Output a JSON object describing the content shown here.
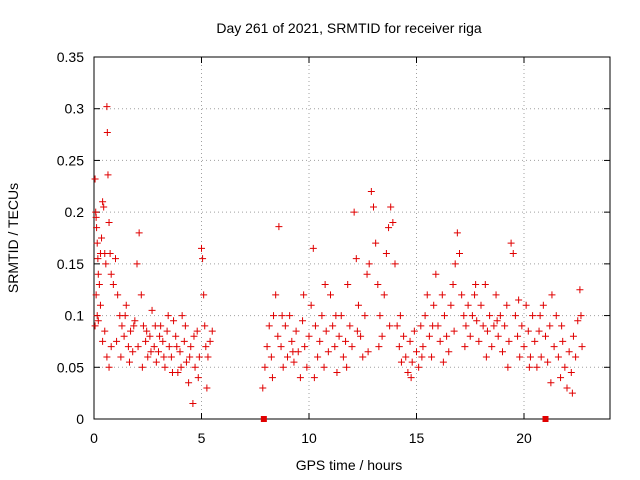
{
  "chart_data": {
    "type": "scatter",
    "title": "Day 261 of 2021, SRMTID for receiver riga",
    "xlabel": "GPS time / hours",
    "ylabel": "SRMTID / TECUs",
    "xlim": [
      0,
      24
    ],
    "ylim": [
      0,
      0.35
    ],
    "xticks": [
      0,
      5,
      10,
      15,
      20
    ],
    "xtick_labels": [
      "0",
      "5",
      "10",
      "15",
      "20"
    ],
    "yticks": [
      0,
      0.05,
      0.1,
      0.15,
      0.2,
      0.25,
      0.3,
      0.35
    ],
    "ytick_labels": [
      "0",
      "0.05",
      "0.1",
      "0.15",
      "0.2",
      "0.25",
      "0.3",
      "0.35"
    ],
    "grid": true,
    "marker": "+",
    "color": "#e00000",
    "segments": [
      {
        "x_start": 0.0,
        "x_end": 5.5,
        "note": "first data block"
      },
      {
        "x_start": 7.8,
        "x_end": 22.7,
        "note": "second data block"
      }
    ],
    "special_markers": [
      {
        "x": 7.9,
        "y": 0.0,
        "shape": "square"
      },
      {
        "x": 21.0,
        "y": 0.0,
        "shape": "square"
      }
    ],
    "series": [
      {
        "name": "SRMTID",
        "points": [
          [
            0.05,
            0.232
          ],
          [
            0.08,
            0.2
          ],
          [
            0.1,
            0.195
          ],
          [
            0.12,
            0.185
          ],
          [
            0.15,
            0.17
          ],
          [
            0.18,
            0.155
          ],
          [
            0.2,
            0.14
          ],
          [
            0.25,
            0.13
          ],
          [
            0.3,
            0.16
          ],
          [
            0.35,
            0.175
          ],
          [
            0.4,
            0.21
          ],
          [
            0.45,
            0.205
          ],
          [
            0.5,
            0.16
          ],
          [
            0.55,
            0.15
          ],
          [
            0.6,
            0.302
          ],
          [
            0.62,
            0.277
          ],
          [
            0.65,
            0.236
          ],
          [
            0.7,
            0.19
          ],
          [
            0.75,
            0.16
          ],
          [
            0.8,
            0.14
          ],
          [
            0.05,
            0.09
          ],
          [
            0.1,
            0.12
          ],
          [
            0.15,
            0.1
          ],
          [
            0.2,
            0.095
          ],
          [
            0.3,
            0.11
          ],
          [
            0.4,
            0.075
          ],
          [
            0.5,
            0.085
          ],
          [
            0.6,
            0.06
          ],
          [
            0.7,
            0.05
          ],
          [
            0.8,
            0.07
          ],
          [
            0.9,
            0.13
          ],
          [
            1.0,
            0.155
          ],
          [
            1.1,
            0.12
          ],
          [
            1.2,
            0.1
          ],
          [
            1.3,
            0.09
          ],
          [
            1.4,
            0.08
          ],
          [
            1.5,
            0.11
          ],
          [
            1.6,
            0.07
          ],
          [
            1.7,
            0.085
          ],
          [
            1.8,
            0.065
          ],
          [
            1.9,
            0.095
          ],
          [
            2.0,
            0.15
          ],
          [
            2.1,
            0.18
          ],
          [
            2.2,
            0.12
          ],
          [
            2.3,
            0.09
          ],
          [
            2.4,
            0.075
          ],
          [
            2.5,
            0.06
          ],
          [
            2.6,
            0.08
          ],
          [
            2.7,
            0.105
          ],
          [
            2.8,
            0.07
          ],
          [
            2.9,
            0.055
          ],
          [
            3.0,
            0.065
          ],
          [
            3.1,
            0.09
          ],
          [
            3.2,
            0.075
          ],
          [
            3.3,
            0.05
          ],
          [
            3.4,
            0.085
          ],
          [
            3.5,
            0.07
          ],
          [
            3.6,
            0.06
          ],
          [
            3.7,
            0.095
          ],
          [
            3.8,
            0.08
          ],
          [
            3.9,
            0.045
          ],
          [
            4.0,
            0.065
          ],
          [
            4.1,
            0.1
          ],
          [
            4.2,
            0.075
          ],
          [
            4.3,
            0.055
          ],
          [
            4.4,
            0.035
          ],
          [
            4.5,
            0.07
          ],
          [
            4.6,
            0.015
          ],
          [
            4.7,
            0.05
          ],
          [
            4.8,
            0.085
          ],
          [
            4.9,
            0.06
          ],
          [
            5.0,
            0.165
          ],
          [
            5.05,
            0.155
          ],
          [
            5.1,
            0.12
          ],
          [
            5.15,
            0.09
          ],
          [
            5.2,
            0.07
          ],
          [
            5.25,
            0.03
          ],
          [
            5.3,
            0.06
          ],
          [
            5.4,
            0.075
          ],
          [
            5.5,
            0.085
          ],
          [
            1.05,
            0.075
          ],
          [
            1.25,
            0.06
          ],
          [
            1.45,
            0.1
          ],
          [
            1.65,
            0.055
          ],
          [
            1.85,
            0.09
          ],
          [
            2.05,
            0.07
          ],
          [
            2.25,
            0.05
          ],
          [
            2.45,
            0.085
          ],
          [
            2.65,
            0.065
          ],
          [
            2.85,
            0.09
          ],
          [
            3.05,
            0.08
          ],
          [
            3.25,
            0.06
          ],
          [
            3.45,
            0.1
          ],
          [
            3.65,
            0.045
          ],
          [
            3.85,
            0.07
          ],
          [
            4.05,
            0.05
          ],
          [
            4.25,
            0.09
          ],
          [
            4.45,
            0.06
          ],
          [
            4.65,
            0.08
          ],
          [
            4.85,
            0.04
          ],
          [
            7.85,
            0.03
          ],
          [
            7.95,
            0.05
          ],
          [
            8.05,
            0.07
          ],
          [
            8.15,
            0.09
          ],
          [
            8.25,
            0.06
          ],
          [
            8.35,
            0.1
          ],
          [
            8.45,
            0.12
          ],
          [
            8.55,
            0.08
          ],
          [
            8.6,
            0.186
          ],
          [
            8.7,
            0.07
          ],
          [
            8.8,
            0.05
          ],
          [
            8.9,
            0.09
          ],
          [
            9.0,
            0.06
          ],
          [
            9.1,
            0.1
          ],
          [
            9.2,
            0.075
          ],
          [
            9.3,
            0.055
          ],
          [
            9.4,
            0.085
          ],
          [
            9.5,
            0.065
          ],
          [
            9.6,
            0.04
          ],
          [
            9.7,
            0.095
          ],
          [
            9.8,
            0.07
          ],
          [
            9.9,
            0.05
          ],
          [
            10.0,
            0.08
          ],
          [
            10.1,
            0.11
          ],
          [
            10.2,
            0.165
          ],
          [
            10.3,
            0.09
          ],
          [
            10.4,
            0.06
          ],
          [
            10.5,
            0.075
          ],
          [
            10.6,
            0.1
          ],
          [
            10.7,
            0.05
          ],
          [
            10.8,
            0.085
          ],
          [
            10.9,
            0.065
          ],
          [
            11.0,
            0.12
          ],
          [
            11.1,
            0.09
          ],
          [
            11.2,
            0.07
          ],
          [
            11.3,
            0.045
          ],
          [
            11.4,
            0.08
          ],
          [
            11.5,
            0.1
          ],
          [
            11.6,
            0.06
          ],
          [
            11.7,
            0.075
          ],
          [
            11.8,
            0.13
          ],
          [
            11.9,
            0.09
          ],
          [
            12.0,
            0.07
          ],
          [
            12.1,
            0.2
          ],
          [
            12.2,
            0.155
          ],
          [
            12.3,
            0.11
          ],
          [
            12.4,
            0.08
          ],
          [
            12.5,
            0.06
          ],
          [
            12.6,
            0.1
          ],
          [
            12.7,
            0.14
          ],
          [
            12.8,
            0.15
          ],
          [
            12.9,
            0.22
          ],
          [
            13.0,
            0.205
          ],
          [
            13.1,
            0.17
          ],
          [
            13.2,
            0.13
          ],
          [
            13.3,
            0.1
          ],
          [
            13.4,
            0.08
          ],
          [
            13.5,
            0.12
          ],
          [
            13.6,
            0.16
          ],
          [
            13.7,
            0.185
          ],
          [
            13.8,
            0.205
          ],
          [
            13.9,
            0.19
          ],
          [
            14.0,
            0.15
          ],
          [
            14.1,
            0.09
          ],
          [
            14.2,
            0.07
          ],
          [
            14.3,
            0.055
          ],
          [
            14.4,
            0.08
          ],
          [
            14.5,
            0.06
          ],
          [
            14.6,
            0.045
          ],
          [
            14.7,
            0.075
          ],
          [
            14.8,
            0.055
          ],
          [
            14.9,
            0.085
          ],
          [
            15.0,
            0.065
          ],
          [
            15.1,
            0.05
          ],
          [
            15.2,
            0.09
          ],
          [
            15.3,
            0.07
          ],
          [
            15.4,
            0.1
          ],
          [
            15.5,
            0.12
          ],
          [
            15.6,
            0.08
          ],
          [
            15.7,
            0.06
          ],
          [
            15.8,
            0.11
          ],
          [
            15.9,
            0.14
          ],
          [
            16.0,
            0.09
          ],
          [
            16.1,
            0.075
          ],
          [
            16.2,
            0.12
          ],
          [
            16.3,
            0.1
          ],
          [
            16.4,
            0.08
          ],
          [
            16.5,
            0.065
          ],
          [
            16.6,
            0.11
          ],
          [
            16.7,
            0.13
          ],
          [
            16.8,
            0.15
          ],
          [
            16.9,
            0.18
          ],
          [
            17.0,
            0.16
          ],
          [
            17.1,
            0.12
          ],
          [
            17.2,
            0.1
          ],
          [
            17.3,
            0.09
          ],
          [
            17.4,
            0.11
          ],
          [
            17.5,
            0.08
          ],
          [
            17.6,
            0.1
          ],
          [
            17.7,
            0.12
          ],
          [
            17.8,
            0.095
          ],
          [
            17.9,
            0.075
          ],
          [
            18.0,
            0.11
          ],
          [
            18.1,
            0.09
          ],
          [
            18.2,
            0.13
          ],
          [
            18.3,
            0.085
          ],
          [
            18.4,
            0.1
          ],
          [
            18.5,
            0.07
          ],
          [
            18.6,
            0.09
          ],
          [
            18.7,
            0.12
          ],
          [
            18.8,
            0.08
          ],
          [
            18.9,
            0.1
          ],
          [
            19.0,
            0.065
          ],
          [
            19.1,
            0.09
          ],
          [
            19.2,
            0.11
          ],
          [
            19.3,
            0.075
          ],
          [
            19.4,
            0.17
          ],
          [
            19.5,
            0.16
          ],
          [
            19.6,
            0.1
          ],
          [
            19.7,
            0.08
          ],
          [
            19.8,
            0.06
          ],
          [
            19.9,
            0.09
          ],
          [
            20.0,
            0.07
          ],
          [
            20.1,
            0.11
          ],
          [
            20.2,
            0.085
          ],
          [
            20.3,
            0.06
          ],
          [
            20.4,
            0.1
          ],
          [
            20.5,
            0.075
          ],
          [
            20.6,
            0.05
          ],
          [
            20.7,
            0.085
          ],
          [
            20.8,
            0.06
          ],
          [
            20.9,
            0.11
          ],
          [
            21.0,
            0.08
          ],
          [
            21.1,
            0.055
          ],
          [
            21.2,
            0.09
          ],
          [
            21.3,
            0.12
          ],
          [
            21.4,
            0.07
          ],
          [
            21.5,
            0.1
          ],
          [
            21.6,
            0.06
          ],
          [
            21.7,
            0.04
          ],
          [
            21.8,
            0.075
          ],
          [
            21.9,
            0.05
          ],
          [
            22.0,
            0.03
          ],
          [
            22.1,
            0.065
          ],
          [
            22.2,
            0.045
          ],
          [
            22.3,
            0.08
          ],
          [
            22.4,
            0.06
          ],
          [
            22.5,
            0.095
          ],
          [
            22.6,
            0.125
          ],
          [
            22.7,
            0.07
          ],
          [
            8.3,
            0.04
          ],
          [
            8.75,
            0.1
          ],
          [
            9.25,
            0.065
          ],
          [
            9.75,
            0.12
          ],
          [
            10.25,
            0.04
          ],
          [
            10.75,
            0.13
          ],
          [
            11.25,
            0.1
          ],
          [
            11.75,
            0.05
          ],
          [
            12.25,
            0.085
          ],
          [
            12.75,
            0.065
          ],
          [
            13.25,
            0.07
          ],
          [
            13.75,
            0.09
          ],
          [
            14.25,
            0.1
          ],
          [
            14.75,
            0.04
          ],
          [
            15.25,
            0.06
          ],
          [
            15.75,
            0.09
          ],
          [
            16.25,
            0.055
          ],
          [
            16.75,
            0.085
          ],
          [
            17.25,
            0.07
          ],
          [
            17.75,
            0.13
          ],
          [
            18.25,
            0.06
          ],
          [
            18.75,
            0.095
          ],
          [
            19.25,
            0.05
          ],
          [
            19.75,
            0.115
          ],
          [
            20.25,
            0.05
          ],
          [
            20.75,
            0.1
          ],
          [
            21.25,
            0.035
          ],
          [
            21.75,
            0.09
          ],
          [
            22.25,
            0.025
          ],
          [
            22.65,
            0.1
          ]
        ]
      }
    ]
  }
}
